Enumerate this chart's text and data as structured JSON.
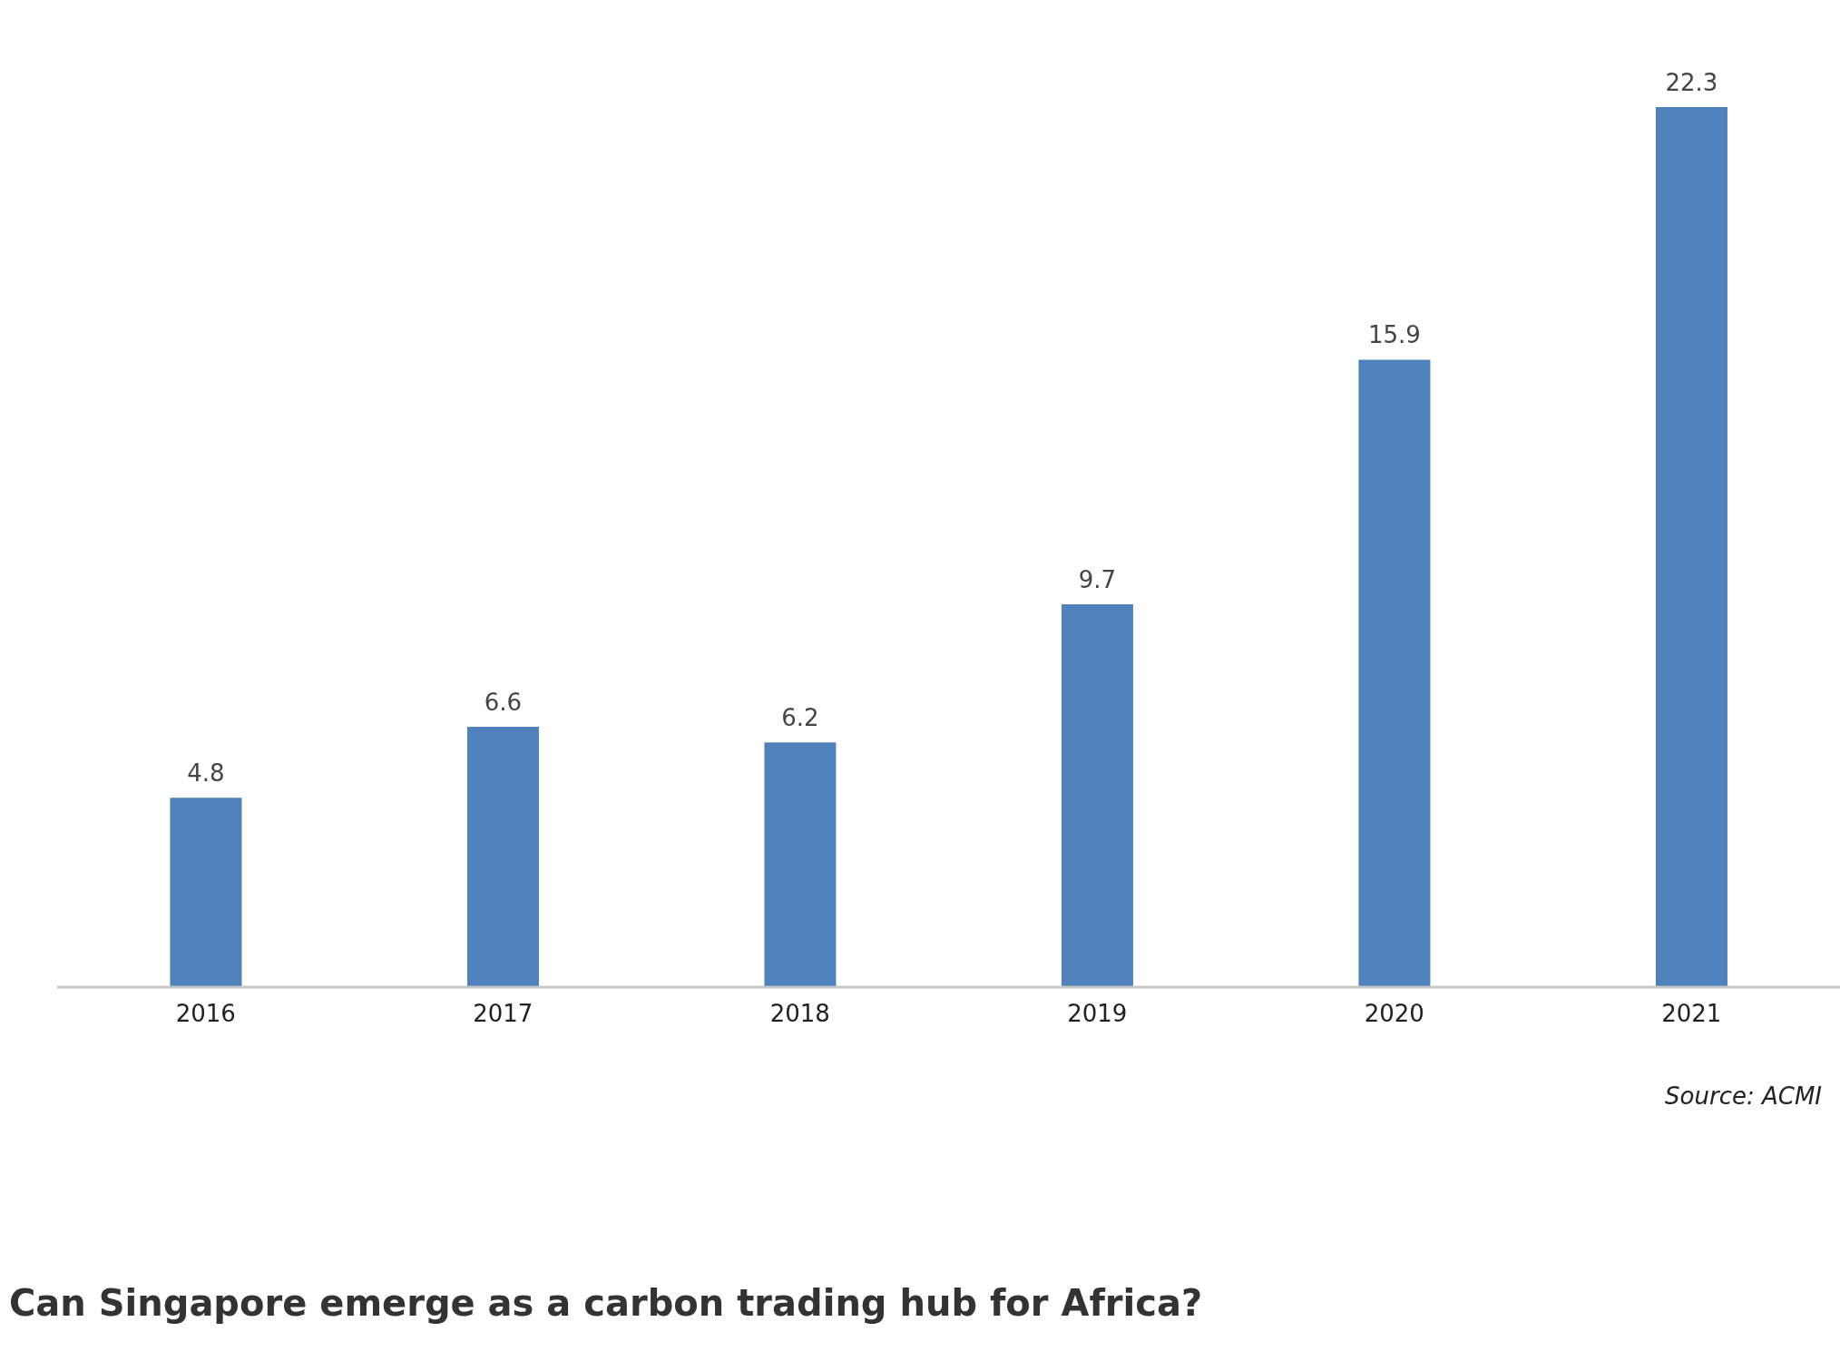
{
  "chart_data": {
    "type": "bar",
    "title": "Can Singapore emerge as a carbon trading hub for Africa?",
    "categories": [
      "2016",
      "2017",
      "2018",
      "2019",
      "2020",
      "2021"
    ],
    "values": [
      4.8,
      6.6,
      6.2,
      9.7,
      15.9,
      22.3
    ],
    "color": "#4f81bd",
    "data_labels": true,
    "annotations": [
      "Source: ACMI"
    ]
  }
}
